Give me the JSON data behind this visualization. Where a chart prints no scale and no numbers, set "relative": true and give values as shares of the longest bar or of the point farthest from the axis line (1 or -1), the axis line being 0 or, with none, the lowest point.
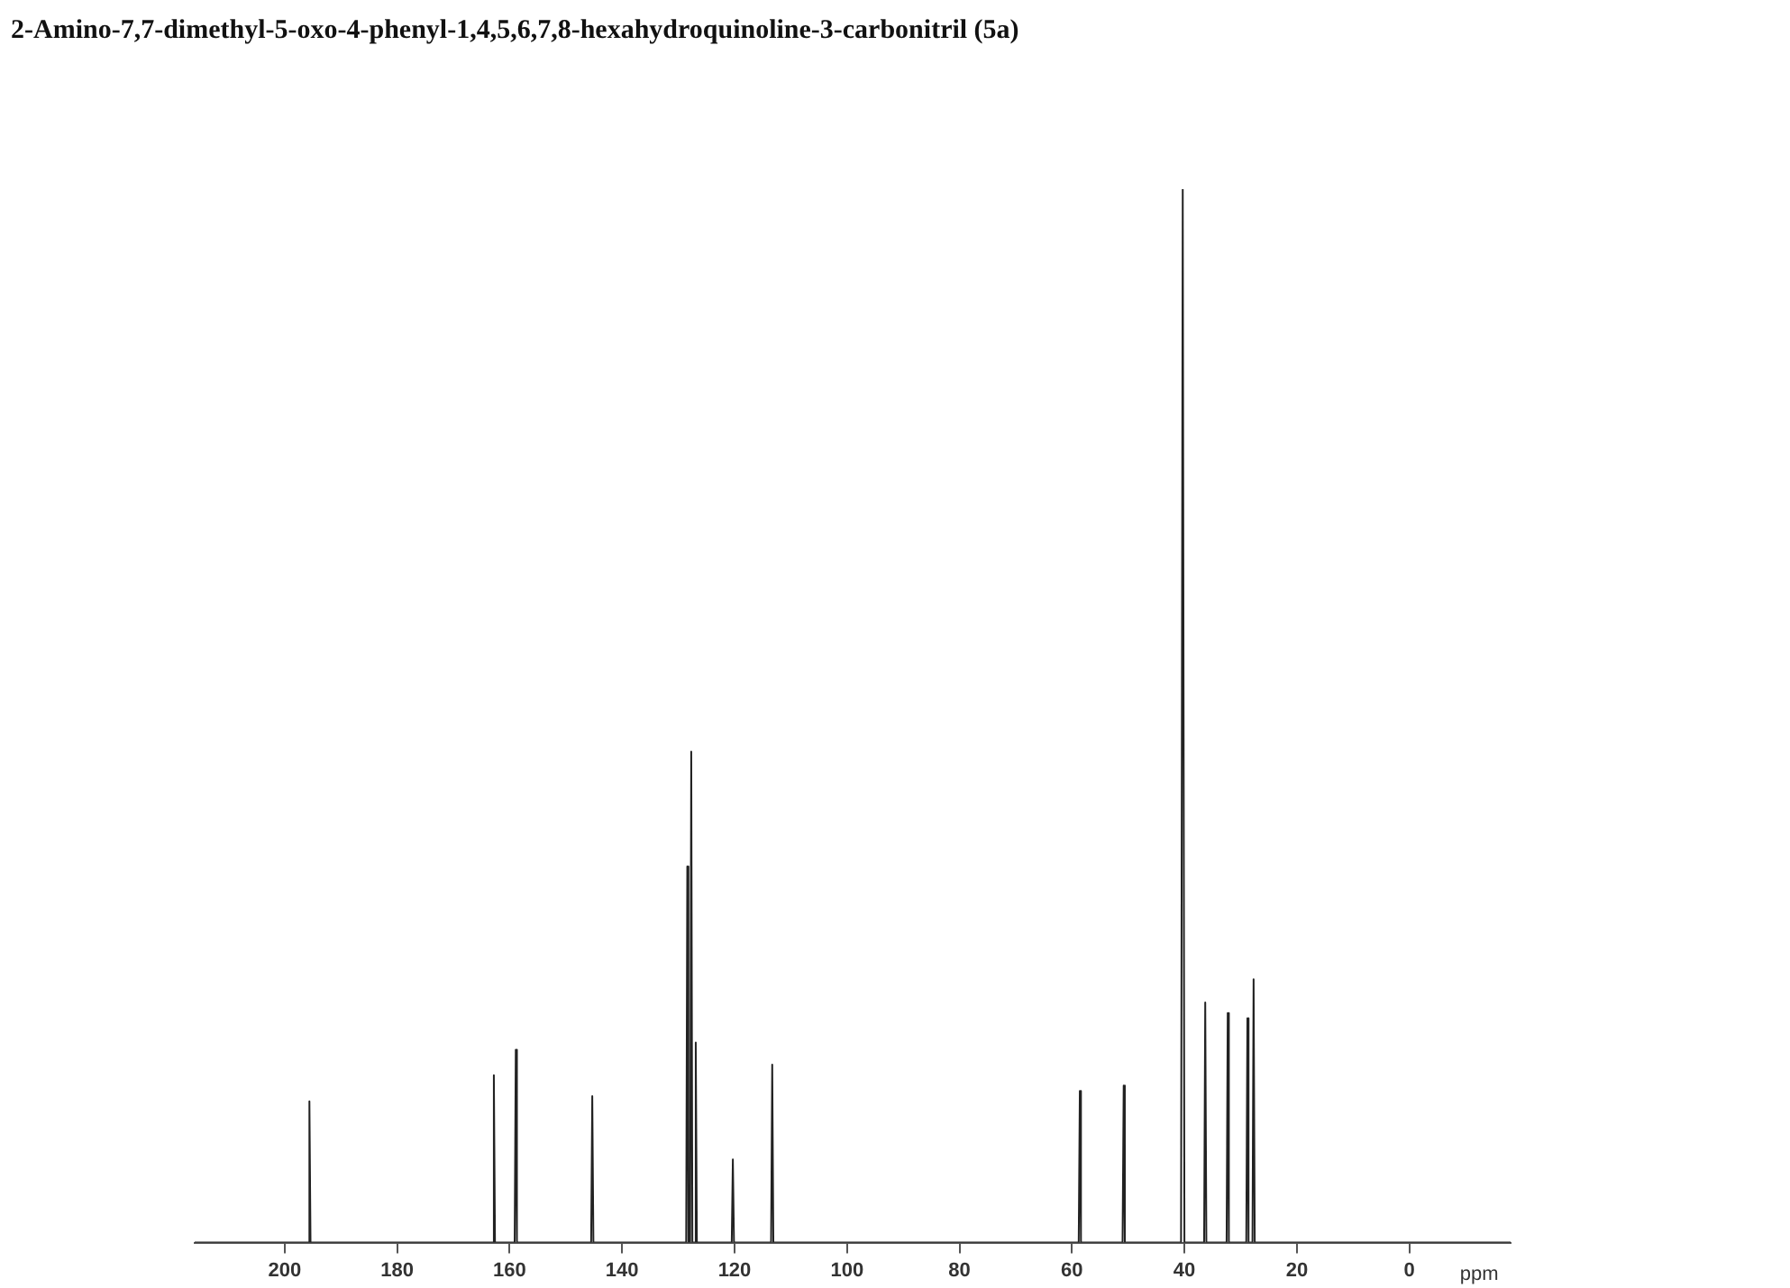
{
  "chart_data": {
    "type": "line",
    "title": "2-Amino-7,7-dimethyl-5-oxo-4-phenyl-1,4,5,6,7,8-hexahydroquinoline-3-carbonitril (5a)",
    "xlabel": "ppm",
    "relative": true,
    "marker": "none",
    "xlim": [
      216,
      -18
    ],
    "xticks": [
      200,
      180,
      160,
      140,
      120,
      100,
      80,
      60,
      40,
      20,
      0
    ],
    "series": [
      {
        "color": "#222222",
        "x": [
          216,
          195.8,
          195.6,
          195.4,
          163,
          162.8,
          162.6,
          159.1,
          158.9,
          158.7,
          145.5,
          145.3,
          145.1,
          128.6,
          128.4,
          128.2,
          127.9,
          127.7,
          127.5,
          127.1,
          126.9,
          126.7,
          120.5,
          120.3,
          120.1,
          113.5,
          113.3,
          113.1,
          58.8,
          58.6,
          58.4,
          51,
          50.8,
          50.6,
          40.6,
          40.3,
          40,
          36.5,
          36.3,
          36.1,
          32.5,
          32.3,
          32.1,
          29,
          28.8,
          28.6,
          27.9,
          27.7,
          27.5,
          -18
        ],
        "values": [
          0,
          0,
          0.134,
          0,
          0,
          0.159,
          0,
          0,
          0.183,
          0,
          0,
          0.139,
          0,
          0,
          0.357,
          0,
          0,
          0.466,
          0,
          0,
          0.19,
          0,
          0,
          0.079,
          0,
          0,
          0.169,
          0,
          0,
          0.144,
          0,
          0,
          0.149,
          0,
          0,
          1,
          0,
          0,
          0.228,
          0,
          0,
          0.218,
          0,
          0,
          0.213,
          0,
          0,
          0.25,
          0,
          0
        ]
      }
    ]
  }
}
